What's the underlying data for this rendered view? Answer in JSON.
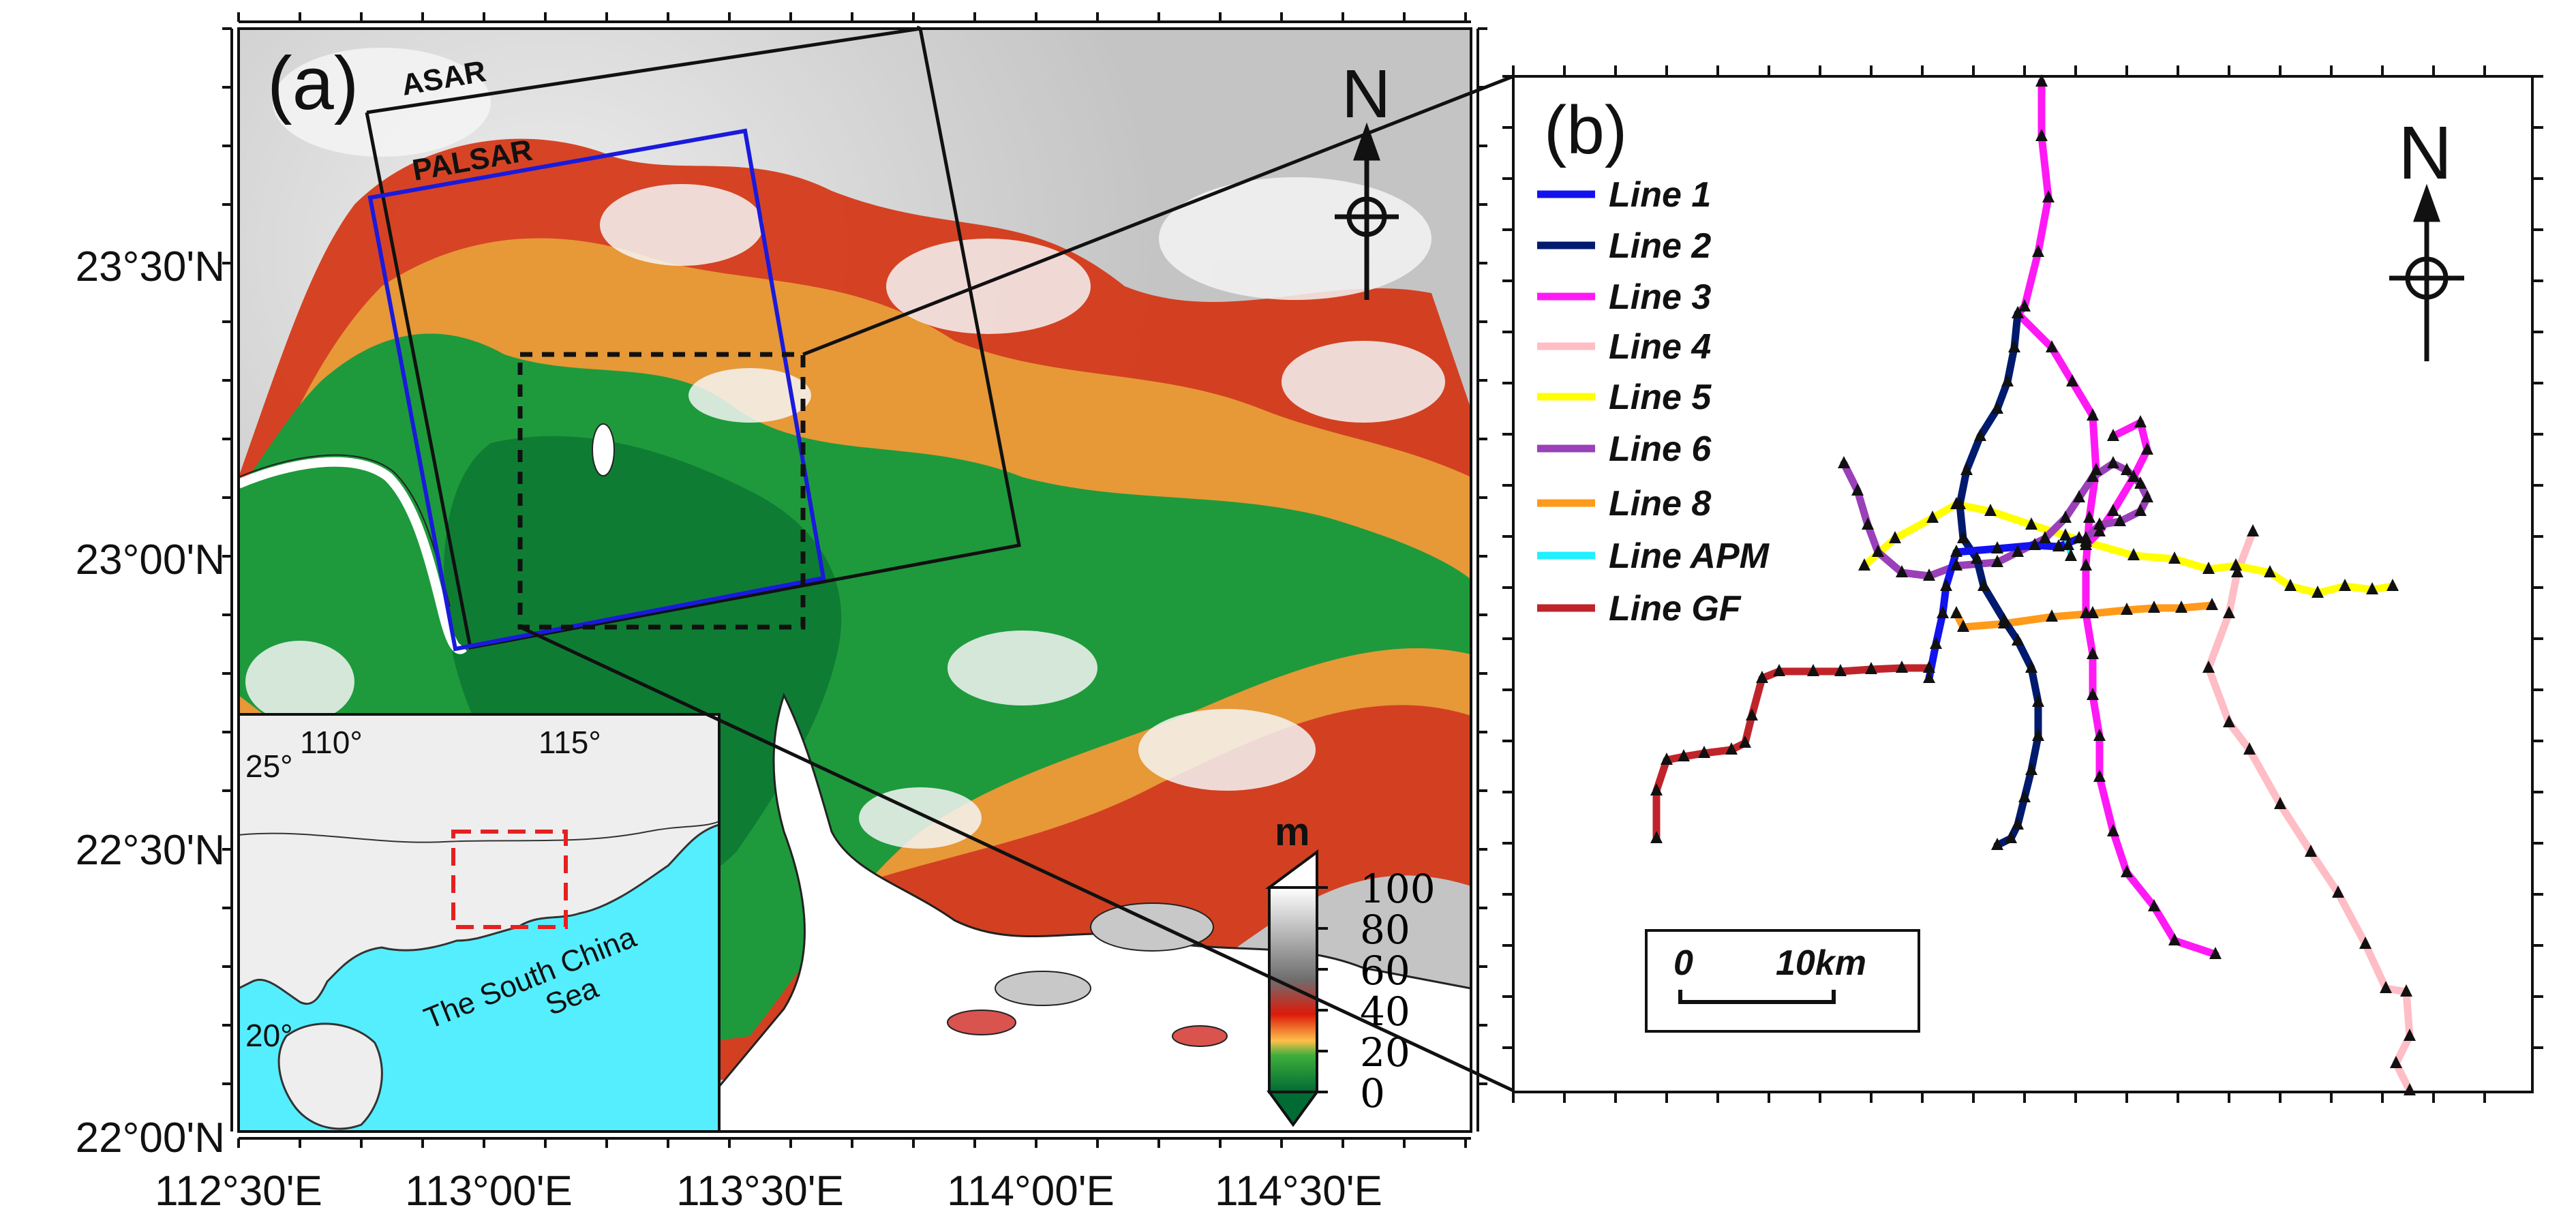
{
  "panel_a": {
    "label": "(a)",
    "y_ticks": [
      "23°30'N",
      "23°00'N",
      "22°30'N",
      "22°00'N"
    ],
    "x_ticks": [
      "112°30'E",
      "113°00'E",
      "113°30'E",
      "114°00'E",
      "114°30'E"
    ],
    "footprints": [
      {
        "name": "ASAR",
        "color": "#111111"
      },
      {
        "name": "PALSAR",
        "color": "#1a1adc"
      }
    ],
    "north_label": "N",
    "colorbar": {
      "unit": "m",
      "ticks": [
        "100",
        "80",
        "60",
        "40",
        "20",
        "0"
      ],
      "colors": [
        "#006b33",
        "#ffc04a",
        "#dd1a0a",
        "#6e6e6e",
        "#ffffff"
      ]
    },
    "inset": {
      "lon_ticks": [
        "110°",
        "115°"
      ],
      "lat_ticks": [
        "25°",
        "20°"
      ],
      "sea_label_line1": "The South China",
      "sea_label_line2": "Sea",
      "sea_color": "#55eeff",
      "land_color": "#eeeeee",
      "box_color": "#e62020"
    }
  },
  "panel_b": {
    "label": "(b)",
    "north_label": "N",
    "scale_bar": {
      "zero": "0",
      "distance": "10km"
    },
    "legend": [
      {
        "name": "Line 1",
        "color": "#1212f0"
      },
      {
        "name": "Line 2",
        "color": "#001a6e"
      },
      {
        "name": "Line 3",
        "color": "#ff19f5"
      },
      {
        "name": "Line 4",
        "color": "#ffbdc5"
      },
      {
        "name": "Line 5",
        "color": "#ffff00"
      },
      {
        "name": "Line 6",
        "color": "#9a40b8"
      },
      {
        "name": "Line 8",
        "color": "#ff9a1a"
      },
      {
        "name": "Line APM",
        "color": "#20f0ff"
      },
      {
        "name": "Line GF",
        "color": "#c0242b"
      }
    ]
  }
}
